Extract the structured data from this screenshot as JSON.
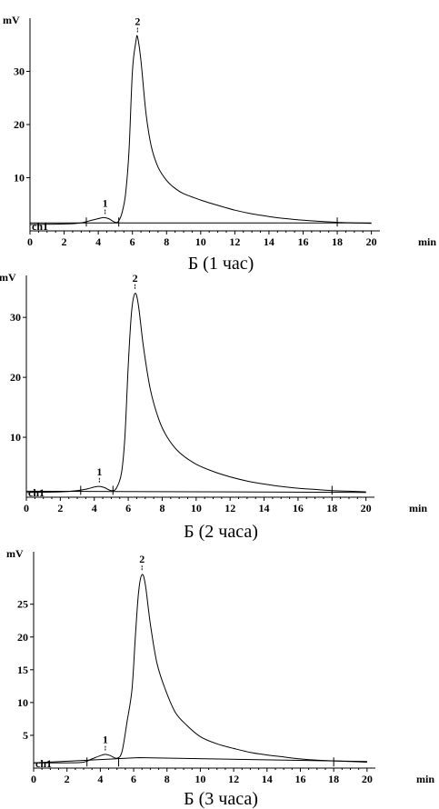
{
  "chart_data": [
    {
      "type": "line",
      "caption": "Б (1 час)",
      "ylabel": "mV",
      "xlabel": "min",
      "channel_label": "ch1",
      "xlim": [
        0,
        20.5
      ],
      "ylim": [
        0,
        40
      ],
      "x_ticks": [
        0,
        2,
        4,
        6,
        8,
        10,
        12,
        14,
        16,
        18,
        20
      ],
      "y_ticks": [
        10,
        20,
        30
      ],
      "peaks": [
        {
          "label": "1",
          "x": 4.4,
          "y": 2.3
        },
        {
          "label": "2",
          "x": 6.3,
          "y": 36.5
        }
      ],
      "baseline": [
        [
          0,
          1.5
        ],
        [
          20,
          1.5
        ]
      ],
      "series": [
        {
          "x": [
            0,
            2,
            3,
            3.5,
            4,
            4.3,
            4.6,
            5,
            5.2,
            5.4,
            5.6,
            5.8,
            6.0,
            6.2,
            6.3,
            6.5,
            6.8,
            7.1,
            7.5,
            8,
            8.5,
            9,
            10,
            11,
            12,
            13,
            14,
            15,
            16,
            17,
            18,
            19,
            20
          ],
          "values": [
            1.2,
            1.3,
            1.5,
            1.9,
            2.3,
            2.5,
            2.3,
            1.6,
            1.9,
            3.5,
            7,
            15,
            30,
            35.5,
            36.5,
            32,
            22,
            16,
            12,
            9.5,
            8,
            7,
            5.8,
            4.8,
            3.9,
            3.2,
            2.7,
            2.3,
            2.0,
            1.8,
            1.6,
            1.5,
            1.4
          ]
        }
      ]
    },
    {
      "type": "line",
      "caption": "Б (2 часа)",
      "ylabel": "mV",
      "xlabel": "min",
      "channel_label": "ch1",
      "xlim": [
        0,
        20.5
      ],
      "ylim": [
        0,
        37
      ],
      "x_ticks": [
        0,
        2,
        4,
        6,
        8,
        10,
        12,
        14,
        16,
        18,
        20
      ],
      "y_ticks": [
        10,
        20,
        30
      ],
      "peaks": [
        {
          "label": "1",
          "x": 4.3,
          "y": 1.7
        },
        {
          "label": "2",
          "x": 6.4,
          "y": 34
        }
      ],
      "baseline": [
        [
          0,
          1.0
        ],
        [
          20,
          0.8
        ]
      ],
      "series": [
        {
          "x": [
            0,
            2,
            3,
            3.6,
            4.0,
            4.3,
            4.6,
            5.0,
            5.3,
            5.6,
            5.8,
            6.0,
            6.2,
            6.4,
            6.6,
            6.9,
            7.3,
            7.8,
            8.3,
            9,
            10,
            11,
            12,
            13,
            14,
            15,
            16,
            17,
            18,
            19,
            20
          ],
          "values": [
            0.8,
            0.9,
            1.1,
            1.4,
            1.7,
            1.8,
            1.6,
            1.1,
            1.5,
            4,
            10,
            22,
            31,
            34,
            32,
            25,
            18,
            13,
            10,
            7.5,
            5.5,
            4.3,
            3.4,
            2.7,
            2.2,
            1.8,
            1.5,
            1.3,
            1.1,
            1.0,
            0.9
          ]
        }
      ]
    },
    {
      "type": "line",
      "caption": "Б (3 часа)",
      "ylabel": "mV",
      "xlabel": "min",
      "channel_label": "ch1",
      "xlim": [
        0,
        20.5
      ],
      "ylim": [
        0,
        33
      ],
      "x_ticks": [
        0,
        2,
        4,
        6,
        8,
        10,
        12,
        14,
        16,
        18,
        20
      ],
      "y_ticks": [
        5,
        10,
        15,
        20,
        25
      ],
      "peaks": [
        {
          "label": "1",
          "x": 4.3,
          "y": 2.0
        },
        {
          "label": "2",
          "x": 6.5,
          "y": 29.5
        }
      ],
      "baseline": [
        [
          0,
          0.8
        ],
        [
          6.3,
          1.6
        ],
        [
          20,
          1.0
        ]
      ],
      "series": [
        {
          "x": [
            0,
            2,
            3,
            3.5,
            4.0,
            4.3,
            4.6,
            5.0,
            5.3,
            5.6,
            5.9,
            6.1,
            6.3,
            6.5,
            6.7,
            7.0,
            7.4,
            7.9,
            8.5,
            9.2,
            10,
            11,
            12,
            13,
            14,
            15,
            16,
            17,
            18,
            19,
            20
          ],
          "values": [
            0.8,
            0.8,
            0.9,
            1.4,
            1.9,
            2.1,
            1.9,
            1.5,
            2.5,
            7,
            12,
            20,
            27,
            29.5,
            28,
            22,
            16,
            12,
            8.5,
            6.5,
            4.8,
            3.7,
            3.0,
            2.4,
            2.0,
            1.7,
            1.4,
            1.2,
            1.1,
            1.0,
            0.9
          ]
        }
      ]
    }
  ]
}
